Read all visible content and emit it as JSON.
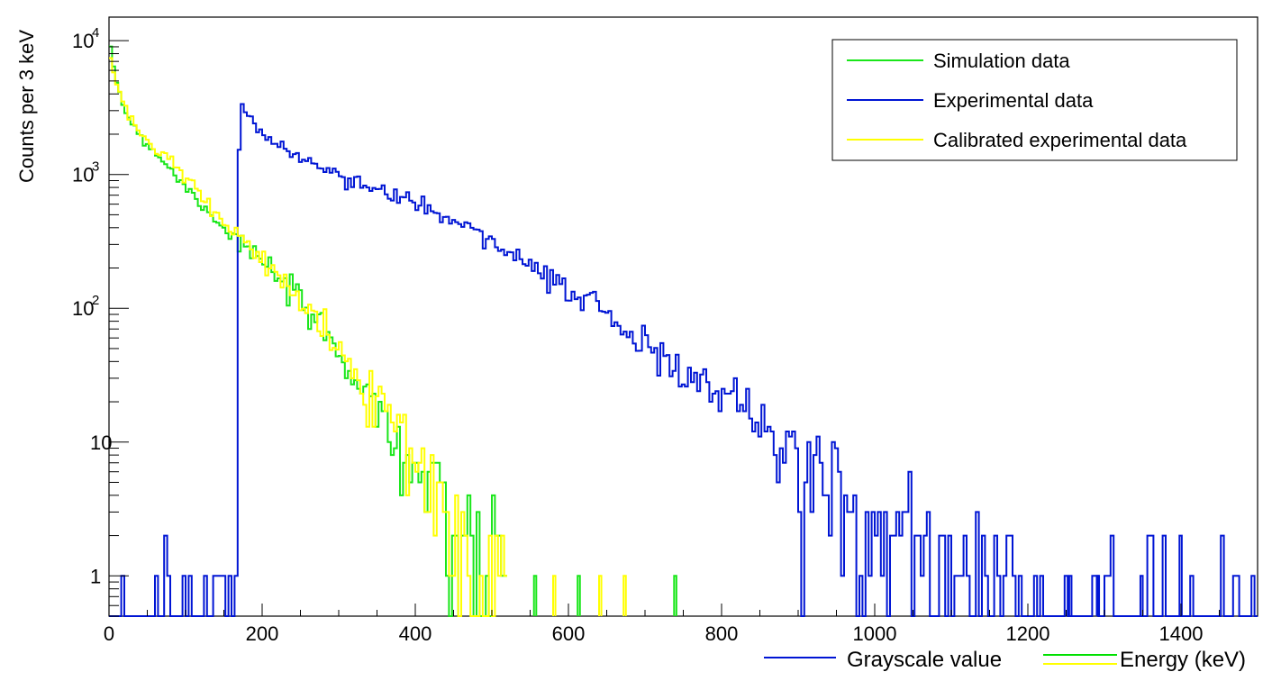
{
  "chart_data": {
    "type": "line",
    "subtype": "step-histogram",
    "ylabel": "Counts per 3 keV",
    "yscale": "log",
    "ylim": [
      0.5,
      15000
    ],
    "xlim": [
      0,
      1500
    ],
    "x_ticks": [
      0,
      200,
      400,
      600,
      800,
      1000,
      1200,
      1400
    ],
    "y_ticks": [
      {
        "value": 1,
        "base": "1",
        "exp": ""
      },
      {
        "value": 10,
        "base": "10",
        "exp": ""
      },
      {
        "value": 100,
        "base": "10",
        "exp": "2"
      },
      {
        "value": 1000,
        "base": "10",
        "exp": "3"
      },
      {
        "value": 10000,
        "base": "10",
        "exp": "4"
      }
    ],
    "bin_width": 3,
    "x_axis_titles": [
      {
        "label": "Grayscale value",
        "color": "#0015d4"
      },
      {
        "label": "Energy (keV)",
        "colors": [
          "#00e000",
          "#ffff00"
        ]
      }
    ],
    "legend_position": "top-right",
    "grid": false,
    "series": [
      {
        "name": "Simulation data",
        "color": "#19e619",
        "x": [
          0,
          10,
          20,
          30,
          50,
          75,
          100,
          125,
          150,
          175,
          200,
          225,
          250,
          275,
          300,
          325,
          350,
          375,
          400,
          425,
          440,
          460,
          480,
          500
        ],
        "y": [
          9000,
          5000,
          3100,
          2400,
          1700,
          1200,
          800,
          580,
          400,
          300,
          220,
          160,
          110,
          75,
          48,
          30,
          18,
          11,
          6,
          3.5,
          2.5,
          1.6,
          1.1,
          0.8
        ]
      },
      {
        "name": "Experimental data",
        "color": "#0015d4",
        "x": [
          0,
          167,
          170,
          172,
          180,
          200,
          250,
          300,
          350,
          400,
          450,
          500,
          550,
          600,
          650,
          700,
          750,
          800,
          850,
          900,
          950,
          1000,
          1050,
          1100
        ],
        "y": [
          0.5,
          0.5,
          1500,
          3900,
          2800,
          2000,
          1300,
          950,
          780,
          600,
          450,
          330,
          220,
          140,
          90,
          55,
          33,
          22,
          13,
          7,
          4,
          2.5,
          1.6,
          1.1
        ]
      },
      {
        "name": "Calibrated experimental data",
        "color": "#ffff00",
        "x": [
          0,
          10,
          20,
          30,
          50,
          75,
          100,
          125,
          150,
          175,
          200,
          225,
          250,
          275,
          300,
          325,
          350,
          375,
          400,
          425,
          440,
          460,
          480,
          500
        ],
        "y": [
          8500,
          4800,
          3100,
          2500,
          1800,
          1350,
          950,
          650,
          440,
          320,
          230,
          165,
          110,
          75,
          50,
          32,
          20,
          12,
          7,
          4,
          3,
          2,
          1.3,
          0.9
        ]
      }
    ],
    "isolated_bins": [
      {
        "series": "Experimental data",
        "x": [
          1254,
          1290,
          1347,
          1398
        ],
        "y": [
          1,
          1,
          1,
          2
        ]
      },
      {
        "series": "Simulation data",
        "x": [
          555,
          612,
          738
        ],
        "y": [
          1,
          1,
          1
        ]
      },
      {
        "series": "Calibrated experimental data",
        "x": [
          580,
          640,
          672
        ],
        "y": [
          1,
          1,
          1
        ]
      }
    ]
  }
}
